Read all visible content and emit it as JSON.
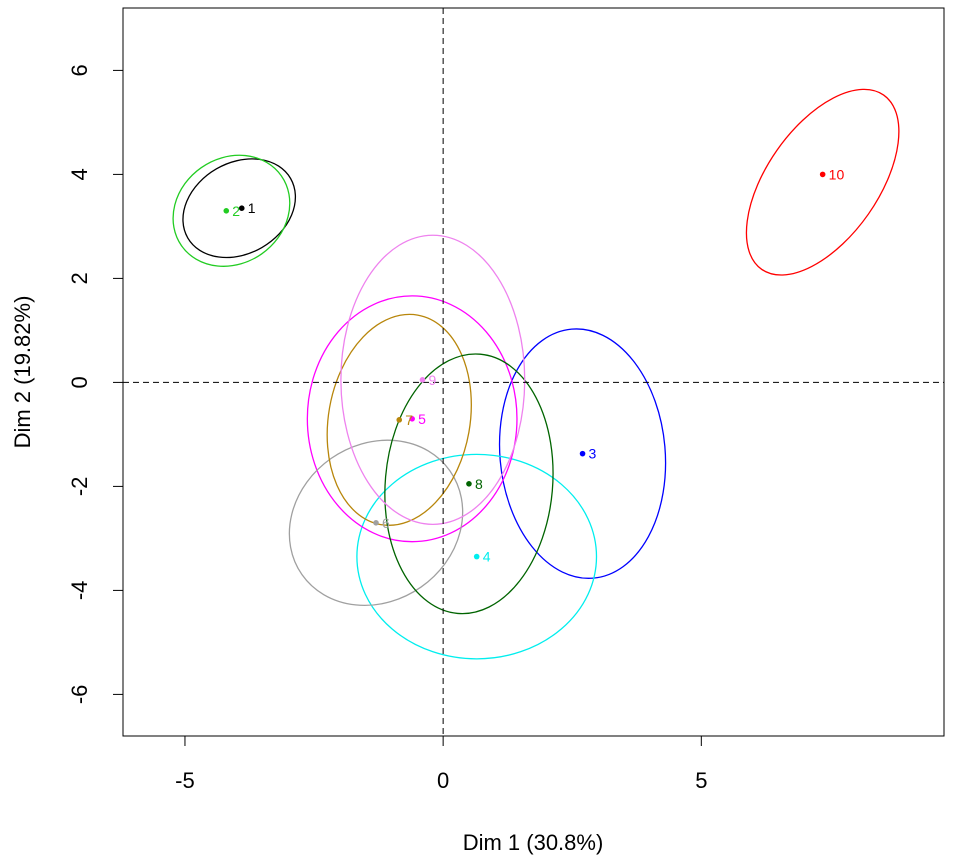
{
  "chart_data": {
    "type": "scatter",
    "title": "",
    "xlabel": "Dim 1 (30.8%)",
    "ylabel": "Dim 2 (19.82%)",
    "xlim": [
      -6.2,
      9.7
    ],
    "ylim": [
      -6.8,
      7.2
    ],
    "xticks": [
      -5,
      0,
      5
    ],
    "yticks": [
      -6,
      -4,
      -2,
      0,
      2,
      4,
      6
    ],
    "grid": false,
    "reference_lines": {
      "x": 0,
      "y": 0,
      "style": "dashed"
    },
    "points": [
      {
        "label": "1",
        "x": -3.9,
        "y": 3.35,
        "color": "#000000"
      },
      {
        "label": "2",
        "x": -4.2,
        "y": 3.3,
        "color": "#22cc22"
      },
      {
        "label": "3",
        "x": 2.7,
        "y": -1.37,
        "color": "#0000ff"
      },
      {
        "label": "4",
        "x": 0.65,
        "y": -3.35,
        "color": "#00eeee"
      },
      {
        "label": "5",
        "x": -0.6,
        "y": -0.7,
        "color": "#ff00ff"
      },
      {
        "label": "6",
        "x": -1.3,
        "y": -2.7,
        "color": "#a0a0a0"
      },
      {
        "label": "7",
        "x": -0.85,
        "y": -0.72,
        "color": "#b8860b"
      },
      {
        "label": "8",
        "x": 0.5,
        "y": -1.95,
        "color": "#006400"
      },
      {
        "label": "9",
        "x": -0.4,
        "y": 0.05,
        "color": "#ee82ee"
      },
      {
        "label": "10",
        "x": 7.35,
        "y": 4.0,
        "color": "#ff0000"
      }
    ],
    "ellipses": [
      {
        "label": "1",
        "cx": -3.95,
        "cy": 3.35,
        "rx": 1.15,
        "ry": 0.88,
        "angle": 30,
        "color": "#000000"
      },
      {
        "label": "2",
        "cx": -4.1,
        "cy": 3.3,
        "rx": 1.18,
        "ry": 1.02,
        "angle": 35,
        "color": "#22cc22"
      },
      {
        "label": "3",
        "cx": 2.7,
        "cy": -1.37,
        "rx": 2.42,
        "ry": 1.6,
        "angle": 95,
        "color": "#0000ff"
      },
      {
        "label": "4",
        "cx": 0.65,
        "cy": -3.35,
        "rx": 2.32,
        "ry": 1.98,
        "angle": 0,
        "color": "#00eeee"
      },
      {
        "label": "5",
        "cx": -0.6,
        "cy": -0.7,
        "rx": 2.38,
        "ry": 2.03,
        "angle": 90,
        "color": "#ff00ff"
      },
      {
        "label": "6",
        "cx": -1.3,
        "cy": -2.7,
        "rx": 1.75,
        "ry": 1.52,
        "angle": 35,
        "color": "#a0a0a0"
      },
      {
        "label": "7",
        "cx": -0.85,
        "cy": -0.72,
        "rx": 2.06,
        "ry": 1.37,
        "angle": 80,
        "color": "#b8860b"
      },
      {
        "label": "8",
        "cx": 0.5,
        "cy": -1.95,
        "rx": 2.52,
        "ry": 1.62,
        "angle": 85,
        "color": "#006400"
      },
      {
        "label": "9",
        "cx": -0.2,
        "cy": 0.05,
        "rx": 2.8,
        "ry": 1.78,
        "angle": 90,
        "color": "#ee82ee"
      },
      {
        "label": "10",
        "cx": 7.35,
        "cy": 3.85,
        "rx": 2.06,
        "ry": 1.08,
        "angle": 55,
        "color": "#ff0000"
      }
    ]
  }
}
